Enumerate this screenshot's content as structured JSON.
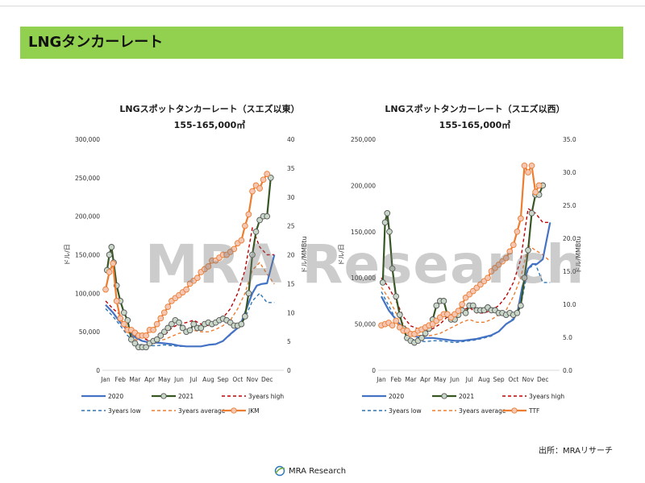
{
  "page": {
    "title": "LNGタンカーレート",
    "source": "出所：MRAリサーチ",
    "logo_text": "MRA Research",
    "watermark": "MRA Research"
  },
  "colors": {
    "header_bg": "#92d050",
    "s2020": "#4472c4",
    "s2021": "#375623",
    "high": "#c00000",
    "low": "#2e75b6",
    "avg": "#ed7d31",
    "price": "#ed7d31",
    "marker_fill": "#c9d7c9",
    "price_marker_fill": "#f4c7b5"
  },
  "chart_data": [
    {
      "type": "line",
      "title": "LNGスポットタンカーレート（スエズ以東）",
      "subtitle": "155-165,000㎥",
      "ylabel": "ドル/日",
      "y2label": "ドル/MMBtu",
      "ylim": [
        0,
        300000
      ],
      "y2lim": [
        0,
        40
      ],
      "yticks": [
        "0",
        "50,000",
        "100,000",
        "150,000",
        "200,000",
        "250,000",
        "300,000"
      ],
      "y2ticks": [
        "0",
        "5",
        "10",
        "15",
        "20",
        "25",
        "30",
        "35",
        "40"
      ],
      "categories": [
        "Jan",
        "Feb",
        "Mar",
        "Apr",
        "May",
        "Jun",
        "Jul",
        "Aug",
        "Sep",
        "Oct",
        "Nov",
        "Dec"
      ],
      "series": [
        {
          "name": "2020",
          "axis": "left",
          "x": [
            0,
            0.5,
            1,
            1.5,
            2,
            2.5,
            3,
            3.5,
            4,
            4.5,
            5,
            5.5,
            6,
            6.5,
            7,
            7.5,
            8,
            8.5,
            9,
            9.3,
            9.6,
            10,
            10.3,
            10.6,
            11,
            11.5
          ],
          "values": [
            85000,
            75000,
            62000,
            52000,
            43000,
            38000,
            36000,
            36000,
            35000,
            34000,
            32000,
            31000,
            31000,
            31000,
            33000,
            34000,
            38000,
            47000,
            55000,
            65000,
            80000,
            100000,
            110000,
            112000,
            113000,
            150000
          ]
        },
        {
          "name": "2021",
          "axis": "left",
          "x": [
            0.1,
            0.25,
            0.4,
            0.55,
            0.75,
            1,
            1.25,
            1.5,
            1.75,
            2,
            2.25,
            2.5,
            2.75,
            3,
            3.25,
            3.5,
            3.75,
            4,
            4.25,
            4.5,
            4.75,
            5,
            5.25,
            5.5,
            5.75,
            6,
            6.25,
            6.5,
            6.75,
            7,
            7.25,
            7.5,
            7.75,
            8,
            8.25,
            8.5,
            8.75,
            9,
            9.25,
            9.5,
            9.75,
            10,
            10.25,
            10.5,
            10.75,
            11,
            11.25
          ],
          "values": [
            130000,
            150000,
            160000,
            140000,
            110000,
            90000,
            75000,
            65000,
            40000,
            35000,
            30000,
            30000,
            30000,
            35000,
            38000,
            40000,
            45000,
            50000,
            55000,
            60000,
            65000,
            62000,
            55000,
            50000,
            52000,
            60000,
            55000,
            55000,
            60000,
            62000,
            60000,
            62000,
            65000,
            67000,
            65000,
            62000,
            58000,
            58000,
            60000,
            70000,
            100000,
            150000,
            180000,
            195000,
            200000,
            200000,
            250000
          ]
        },
        {
          "name": "3years high",
          "axis": "left",
          "x": [
            0,
            0.5,
            1,
            1.5,
            2,
            2.5,
            3,
            3.5,
            4,
            4.5,
            5,
            5.5,
            6,
            6.5,
            7,
            7.5,
            8,
            8.5,
            9,
            9.5,
            10,
            10.5,
            11,
            11.5
          ],
          "values": [
            90000,
            80000,
            72000,
            55000,
            45000,
            42000,
            38000,
            40000,
            45000,
            55000,
            60000,
            62000,
            65000,
            60000,
            58000,
            62000,
            68000,
            80000,
            100000,
            130000,
            185000,
            160000,
            150000,
            150000
          ]
        },
        {
          "name": "3years low",
          "axis": "left",
          "x": [
            0,
            0.5,
            1,
            1.5,
            2,
            2.5,
            3,
            3.5,
            4,
            4.5,
            5,
            5.5,
            6,
            6.5,
            7,
            7.5,
            8,
            8.5,
            9,
            9.5,
            10,
            10.5,
            11,
            11.5
          ],
          "values": [
            80000,
            70000,
            58000,
            45000,
            36000,
            33000,
            32000,
            32000,
            33000,
            32000,
            31000,
            31000,
            31000,
            31000,
            33000,
            34000,
            38000,
            46000,
            55000,
            68000,
            90000,
            100000,
            88000,
            88000
          ]
        },
        {
          "name": "3years average",
          "axis": "left",
          "x": [
            0,
            0.5,
            1,
            1.5,
            2,
            2.5,
            3,
            3.5,
            4,
            4.5,
            5,
            5.5,
            6,
            6.5,
            7,
            7.5,
            8,
            8.5,
            9,
            9.5,
            10,
            10.5,
            11,
            11.5
          ],
          "values": [
            85000,
            75000,
            63000,
            50000,
            40000,
            38000,
            36000,
            38000,
            40000,
            44000,
            48000,
            50000,
            52000,
            50000,
            50000,
            53000,
            58000,
            65000,
            80000,
            100000,
            130000,
            140000,
            125000,
            112000
          ]
        },
        {
          "name": "JKM",
          "axis": "right",
          "x": [
            0,
            0.25,
            0.5,
            0.75,
            1,
            1.25,
            1.5,
            1.75,
            2,
            2.25,
            2.5,
            2.75,
            3,
            3.25,
            3.5,
            3.75,
            4,
            4.25,
            4.5,
            4.75,
            5,
            5.25,
            5.5,
            5.75,
            6,
            6.25,
            6.5,
            6.75,
            7,
            7.25,
            7.5,
            7.75,
            8,
            8.25,
            8.5,
            8.75,
            9,
            9.25,
            9.5,
            9.75,
            10,
            10.25,
            10.5,
            10.75,
            11
          ],
          "values": [
            14,
            17,
            18.5,
            12,
            9,
            8,
            7,
            7,
            6.5,
            6,
            6,
            6,
            7,
            7,
            8,
            9,
            10,
            11,
            12,
            12.5,
            13,
            13.5,
            14,
            15,
            15.5,
            16,
            17,
            17.5,
            18,
            19,
            19,
            19.5,
            20,
            20,
            20.5,
            21,
            22,
            22.5,
            25,
            27,
            31,
            32,
            31.5,
            33,
            34
          ]
        }
      ]
    },
    {
      "type": "line",
      "title": "LNGスポットタンカーレート（スエズ以西）",
      "subtitle": "155-165,000㎥",
      "ylabel": "ドル/日",
      "y2label": "ドル/MMBtu",
      "ylim": [
        0,
        250000
      ],
      "y2lim": [
        0,
        35
      ],
      "yticks": [
        "0",
        "50,000",
        "100,000",
        "150,000",
        "200,000",
        "250,000"
      ],
      "y2ticks": [
        "0.0",
        "5.0",
        "10.0",
        "15.0",
        "20.0",
        "25.0",
        "30.0",
        "35.0"
      ],
      "categories": [
        "Jan",
        "Feb",
        "Mar",
        "Apr",
        "May",
        "Jun",
        "Jul",
        "Aug",
        "Sep",
        "Oct",
        "Nov",
        "Dec"
      ],
      "series": [
        {
          "name": "2020",
          "axis": "left",
          "x": [
            0,
            0.5,
            1,
            1.5,
            2,
            2.5,
            3,
            3.5,
            4,
            4.5,
            5,
            5.5,
            6,
            6.5,
            7,
            7.5,
            8,
            8.5,
            9,
            9.3,
            9.6,
            10,
            10.3,
            10.6,
            11,
            11.5
          ],
          "values": [
            80000,
            65000,
            55000,
            45000,
            38000,
            36000,
            35000,
            35000,
            34000,
            33000,
            32000,
            32000,
            33000,
            34000,
            36000,
            38000,
            42000,
            50000,
            55000,
            65000,
            90000,
            110000,
            115000,
            115000,
            120000,
            160000
          ]
        },
        {
          "name": "2021",
          "axis": "left",
          "x": [
            0.1,
            0.25,
            0.4,
            0.55,
            0.75,
            1,
            1.25,
            1.5,
            1.75,
            2,
            2.25,
            2.5,
            2.75,
            3,
            3.25,
            3.5,
            3.75,
            4,
            4.25,
            4.5,
            4.75,
            5,
            5.25,
            5.5,
            5.75,
            6,
            6.25,
            6.5,
            6.75,
            7,
            7.25,
            7.5,
            7.75,
            8,
            8.25,
            8.5,
            8.75,
            9,
            9.25,
            9.5,
            9.75,
            10,
            10.25,
            10.5,
            10.75,
            11
          ],
          "values": [
            95000,
            160000,
            170000,
            150000,
            110000,
            80000,
            60000,
            45000,
            35000,
            32000,
            30000,
            32000,
            35000,
            40000,
            45000,
            55000,
            70000,
            75000,
            75000,
            60000,
            55000,
            55000,
            60000,
            65000,
            62000,
            70000,
            70000,
            65000,
            65000,
            65000,
            68000,
            65000,
            65000,
            62000,
            62000,
            60000,
            62000,
            60000,
            62000,
            70000,
            100000,
            130000,
            170000,
            190000,
            190000,
            200000
          ]
        },
        {
          "name": "3years high",
          "axis": "left",
          "x": [
            0,
            0.5,
            1,
            1.5,
            2,
            2.5,
            3,
            3.5,
            4,
            4.5,
            5,
            5.5,
            6,
            6.5,
            7,
            7.5,
            8,
            8.5,
            9,
            9.5,
            10,
            10.5,
            11,
            11.5
          ],
          "values": [
            100000,
            90000,
            75000,
            58000,
            48000,
            45000,
            42000,
            45000,
            50000,
            58000,
            62000,
            65000,
            68000,
            62000,
            62000,
            65000,
            70000,
            80000,
            95000,
            120000,
            175000,
            170000,
            160000,
            160000
          ]
        },
        {
          "name": "3years low",
          "axis": "left",
          "x": [
            0,
            0.5,
            1,
            1.5,
            2,
            2.5,
            3,
            3.5,
            4,
            4.5,
            5,
            5.5,
            6,
            6.5,
            7,
            7.5,
            8,
            8.5,
            9,
            9.5,
            10,
            10.5,
            11,
            11.5
          ],
          "values": [
            85000,
            70000,
            55000,
            42000,
            34000,
            32000,
            31000,
            32000,
            32000,
            31000,
            30000,
            31000,
            32000,
            33000,
            35000,
            37000,
            42000,
            50000,
            56000,
            70000,
            110000,
            115000,
            95000,
            95000
          ]
        },
        {
          "name": "3years average",
          "axis": "left",
          "x": [
            0,
            0.5,
            1,
            1.5,
            2,
            2.5,
            3,
            3.5,
            4,
            4.5,
            5,
            5.5,
            6,
            6.5,
            7,
            7.5,
            8,
            8.5,
            9,
            9.5,
            10,
            10.5,
            11,
            11.5
          ],
          "values": [
            90000,
            78000,
            62000,
            50000,
            40000,
            38000,
            37000,
            38000,
            40000,
            44000,
            48000,
            52000,
            55000,
            52000,
            52000,
            55000,
            60000,
            65000,
            80000,
            100000,
            135000,
            130000,
            125000,
            118000
          ]
        },
        {
          "name": "TTF",
          "axis": "right",
          "x": [
            0,
            0.25,
            0.5,
            0.75,
            1,
            1.25,
            1.5,
            1.75,
            2,
            2.25,
            2.5,
            2.75,
            3,
            3.25,
            3.5,
            3.75,
            4,
            4.25,
            4.5,
            4.75,
            5,
            5.25,
            5.5,
            5.75,
            6,
            6.25,
            6.5,
            6.75,
            7,
            7.25,
            7.5,
            7.75,
            8,
            8.25,
            8.5,
            8.75,
            9,
            9.25,
            9.5,
            9.75,
            10,
            10.25,
            10.5,
            10.75
          ],
          "values": [
            6.8,
            7,
            7.2,
            6.8,
            7.5,
            6.5,
            6,
            6,
            5.5,
            5.5,
            6,
            6.2,
            6.5,
            6.8,
            7,
            7.5,
            8,
            8.5,
            8.5,
            8,
            8.5,
            9,
            10,
            11,
            11.5,
            12,
            12.5,
            13,
            13.5,
            14,
            15,
            15.5,
            16,
            16.5,
            17,
            18,
            19,
            21,
            23,
            31,
            30,
            31,
            27,
            28
          ]
        }
      ]
    }
  ],
  "legend": {
    "items": [
      "2020",
      "2021",
      "3years high",
      "3years low",
      "3years average"
    ],
    "left_price": "JKM",
    "right_price": "TTF"
  }
}
